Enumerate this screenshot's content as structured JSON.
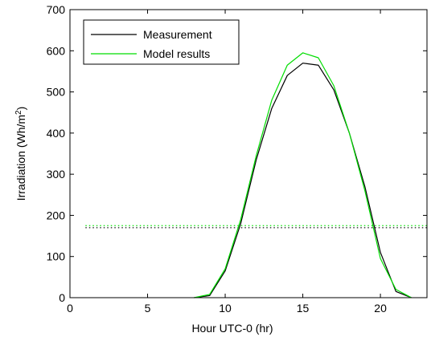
{
  "chart_data": {
    "type": "line",
    "xlabel": "Hour UTC-0  (hr)",
    "ylabel": "Irradiation (Wh/m²)",
    "ylabel_parts": {
      "main": "Irradiation (Wh/m",
      "sup": "2",
      "close": ")"
    },
    "xlim": [
      0,
      23
    ],
    "ylim": [
      0,
      700
    ],
    "xticks": [
      0,
      5,
      10,
      15,
      20
    ],
    "yticks": [
      0,
      100,
      200,
      300,
      400,
      500,
      600,
      700
    ],
    "grid": false,
    "legend_position": "top-left",
    "series": [
      {
        "name": "Measurement",
        "color": "#000000",
        "style": "solid",
        "x": [
          8,
          9,
          10,
          11,
          12,
          13,
          14,
          15,
          16,
          17,
          18,
          19,
          20,
          21,
          22
        ],
        "y": [
          0,
          5,
          65,
          180,
          335,
          460,
          540,
          570,
          565,
          505,
          400,
          270,
          110,
          15,
          0
        ]
      },
      {
        "name": "Model results",
        "color": "#00dd00",
        "style": "solid",
        "x": [
          8,
          9,
          10,
          11,
          12,
          13,
          14,
          15,
          16,
          17,
          18,
          19,
          20,
          21,
          22
        ],
        "y": [
          0,
          8,
          70,
          190,
          345,
          480,
          565,
          595,
          583,
          515,
          400,
          260,
          95,
          20,
          0
        ]
      }
    ],
    "reference_lines": [
      {
        "color": "#000000",
        "style": "dotted",
        "y": 170,
        "x_range": [
          1,
          23
        ]
      },
      {
        "color": "#00dd00",
        "style": "dotted",
        "y": 175,
        "x_range": [
          1,
          23
        ]
      }
    ]
  }
}
